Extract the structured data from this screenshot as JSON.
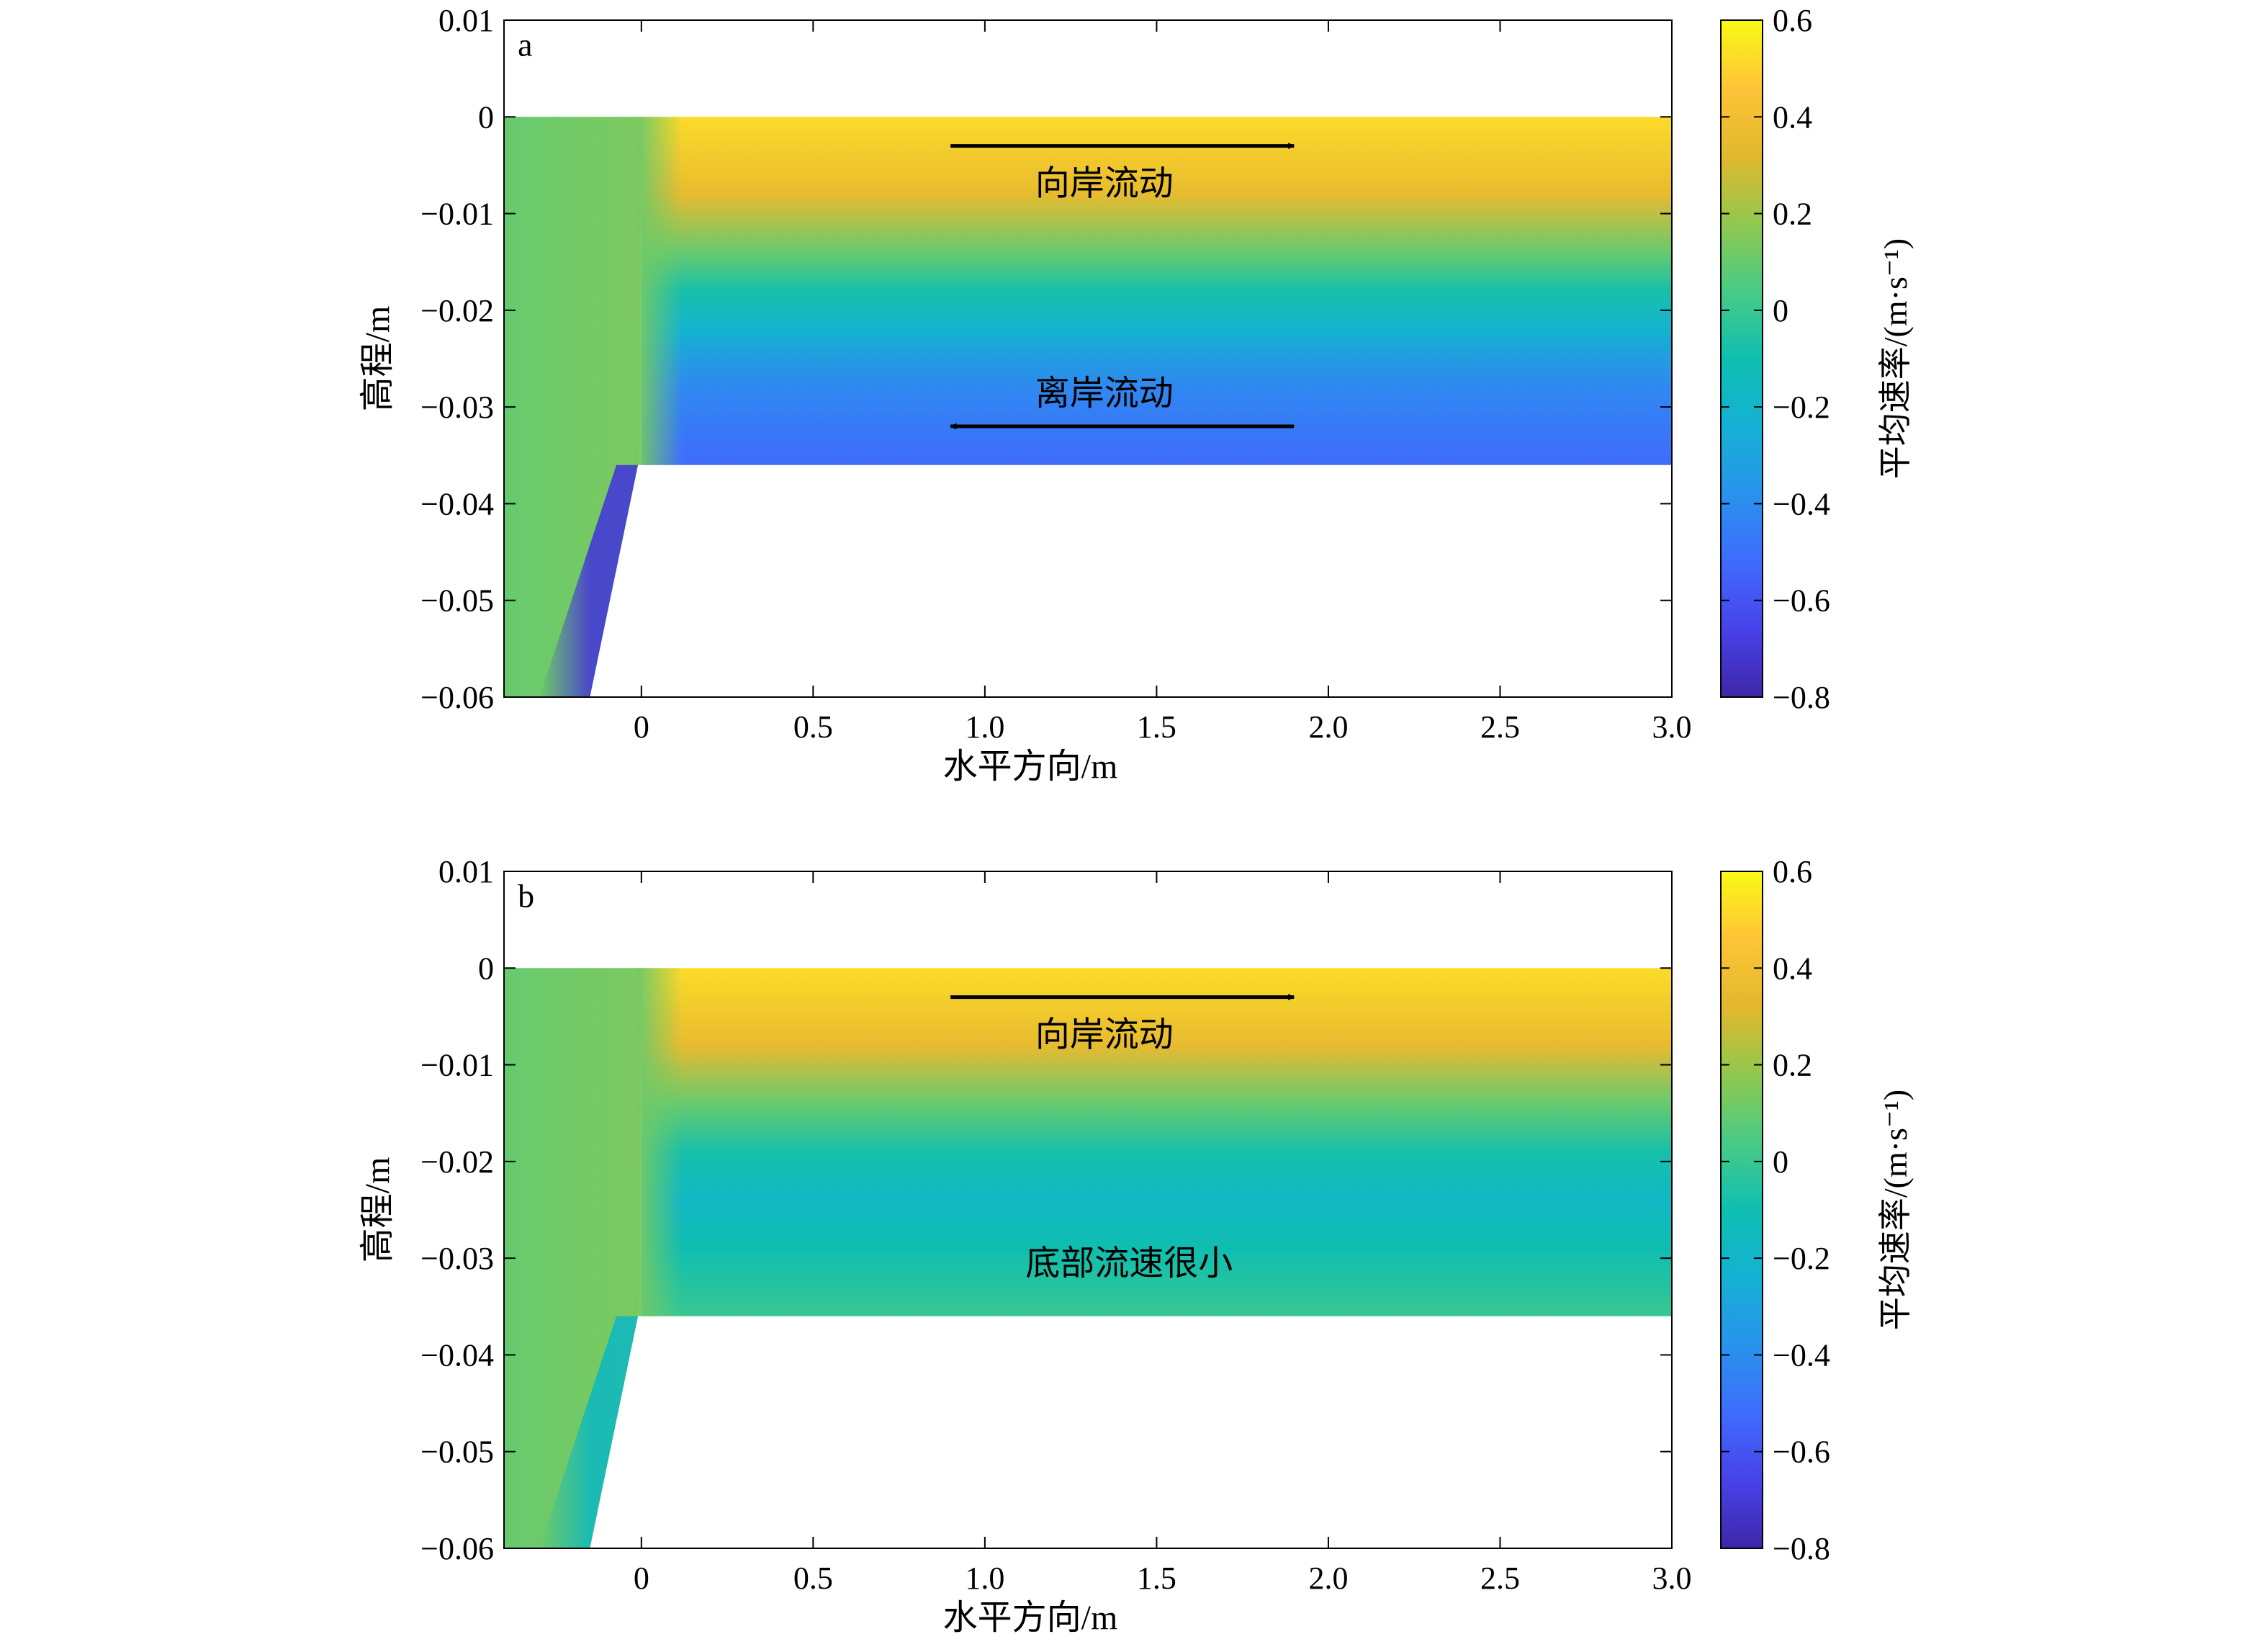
{
  "colorbar": {
    "label": "平均速率/(m·s⁻¹)",
    "range": [
      -0.8,
      0.6
    ],
    "ticks": [
      "0.6",
      "0.4",
      "0.2",
      "0",
      "−0.2",
      "−0.4",
      "−0.6",
      "−0.8"
    ],
    "colormap": "parula"
  },
  "chart_data": [
    {
      "type": "heatmap",
      "panel_label": "a",
      "xlabel": "水平方向/m",
      "ylabel": "高程/m",
      "xlim": [
        -0.4,
        3.0
      ],
      "ylim": [
        -0.06,
        0.01
      ],
      "xticks": [
        "0",
        "0.5",
        "1.0",
        "1.5",
        "2.0",
        "2.5",
        "3.0"
      ],
      "yticks": [
        "0.01",
        "0",
        "−0.01",
        "−0.02",
        "−0.03",
        "−0.04",
        "−0.05",
        "−0.06"
      ],
      "velocity_profile": [
        {
          "z": 0.0,
          "v": 0.52
        },
        {
          "z": -0.008,
          "v": 0.35
        },
        {
          "z": -0.014,
          "v": 0.1
        },
        {
          "z": -0.018,
          "v": -0.08
        },
        {
          "z": -0.022,
          "v": -0.22
        },
        {
          "z": -0.028,
          "v": -0.42
        },
        {
          "z": -0.036,
          "v": -0.52
        }
      ],
      "annotations": [
        {
          "text": "向岸流动",
          "direction": "onshore",
          "z": -0.003,
          "x_start": 0.9,
          "x_end": 1.9
        },
        {
          "text": "离岸流动",
          "direction": "offshore",
          "z": -0.032,
          "x_start": 1.9,
          "x_end": 0.9
        }
      ]
    },
    {
      "type": "heatmap",
      "panel_label": "b",
      "xlabel": "水平方向/m",
      "ylabel": "高程/m",
      "xlim": [
        -0.4,
        3.0
      ],
      "ylim": [
        -0.06,
        0.01
      ],
      "xticks": [
        "0",
        "0.5",
        "1.0",
        "1.5",
        "2.0",
        "2.5",
        "3.0"
      ],
      "yticks": [
        "0.01",
        "0",
        "−0.01",
        "−0.02",
        "−0.03",
        "−0.04",
        "−0.05",
        "−0.06"
      ],
      "velocity_profile": [
        {
          "z": 0.0,
          "v": 0.52
        },
        {
          "z": -0.008,
          "v": 0.35
        },
        {
          "z": -0.014,
          "v": 0.1
        },
        {
          "z": -0.019,
          "v": -0.08
        },
        {
          "z": -0.024,
          "v": -0.18
        },
        {
          "z": -0.029,
          "v": -0.1
        },
        {
          "z": -0.036,
          "v": 0.0
        }
      ],
      "annotations": [
        {
          "text": "向岸流动",
          "direction": "onshore",
          "z": -0.003,
          "x_start": 0.9,
          "x_end": 1.9
        },
        {
          "text": "底部流速很小",
          "direction": "none",
          "z": -0.0305,
          "x_center": 1.42
        }
      ]
    }
  ]
}
